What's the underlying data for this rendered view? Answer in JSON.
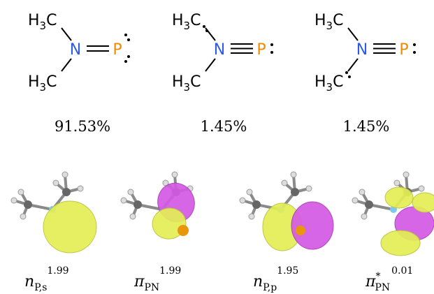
{
  "structures": [
    {
      "top_methyl": {
        "h": "H",
        "n": "3",
        "c": "C"
      },
      "bottom_methyl": {
        "h": "H",
        "n": "3",
        "c": "C"
      },
      "n": "N",
      "p": "P",
      "weight": "91.53%"
    },
    {
      "top_methyl": {
        "h": "H",
        "n": "3",
        "c": "C"
      },
      "bottom_methyl": {
        "h": "H",
        "n": "3",
        "c": "C"
      },
      "n": "N",
      "p": "P",
      "weight": "1.45%"
    },
    {
      "top_methyl": {
        "h": "H",
        "n": "3",
        "c": "C"
      },
      "bottom_methyl": {
        "h": "H",
        "n": "3",
        "c": "C"
      },
      "n": "N",
      "p": "P",
      "weight": "1.45%"
    }
  ],
  "orbitals": [
    {
      "symbol": "n",
      "sub": "P,s",
      "occupancy": "1.99"
    },
    {
      "symbol": "π",
      "sub": "PN",
      "occupancy": "1.99"
    },
    {
      "symbol": "n",
      "sub": "P,p",
      "occupancy": "1.95"
    },
    {
      "symbol": "π",
      "star": "*",
      "sub": "PN",
      "occupancy": "0.01"
    }
  ]
}
